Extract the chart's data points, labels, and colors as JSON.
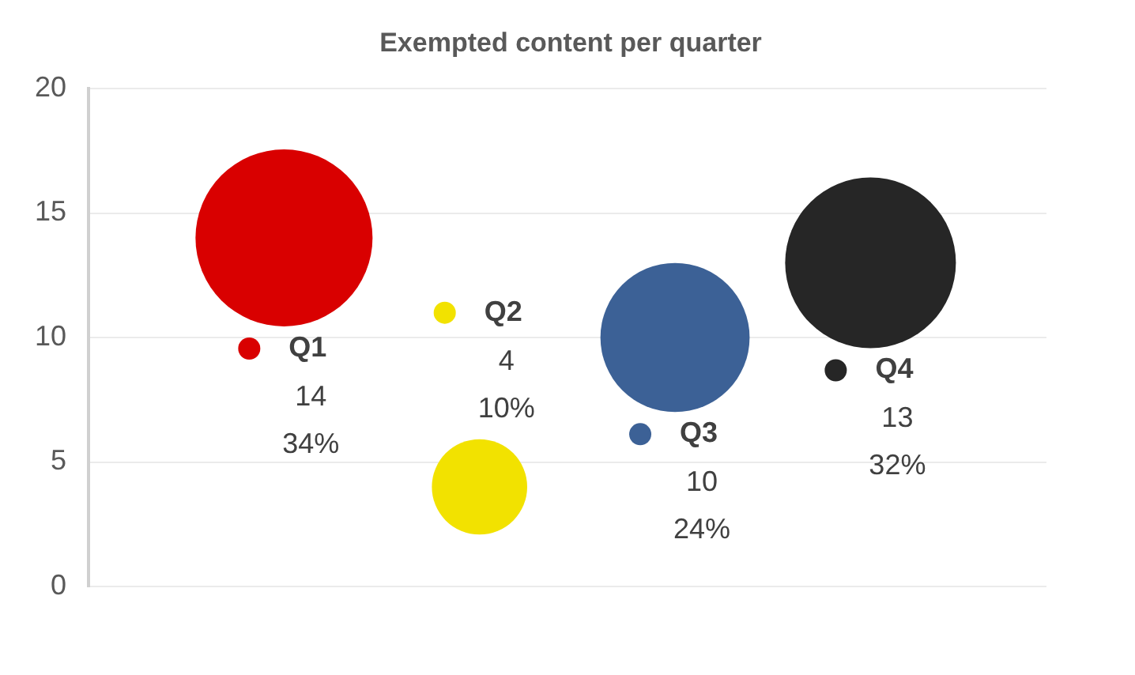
{
  "chart_data": {
    "type": "bubble",
    "title": "Exempted content per quarter",
    "categories": [
      null,
      null,
      null,
      null
    ],
    "series": [
      {
        "name": "Q1",
        "color": "#d90000",
        "values": [
          14,
          null,
          null,
          null
        ],
        "sizes": [
          1,
          null,
          null,
          null
        ],
        "value_labels": [
          "14",
          null,
          null,
          null
        ]
      },
      {
        "name": "Q2",
        "color": "#f2e200",
        "values": [
          null,
          4,
          null,
          null
        ],
        "sizes": [
          null,
          0.29,
          null,
          null
        ],
        "value_labels": [
          null,
          "4",
          null,
          null
        ]
      },
      {
        "name": "Q3",
        "color": "#3c6196",
        "values": [
          null,
          null,
          10,
          null
        ],
        "sizes": [
          null,
          null,
          0.71,
          null
        ],
        "value_labels": [
          null,
          null,
          "10",
          null
        ]
      },
      {
        "name": "Q4",
        "color": "#262626",
        "values": [
          null,
          null,
          null,
          13
        ],
        "sizes": [
          null,
          null,
          null,
          0.93
        ],
        "value_labels": [
          null,
          null,
          null,
          "13"
        ]
      }
    ],
    "annotations": [
      "34%",
      "10%",
      "24%",
      "32%"
    ],
    "ylim": [
      0,
      20
    ],
    "yticks": [
      0,
      5,
      10,
      15,
      20
    ],
    "grid": "y",
    "legend": "center",
    "tick_labels": "y"
  }
}
